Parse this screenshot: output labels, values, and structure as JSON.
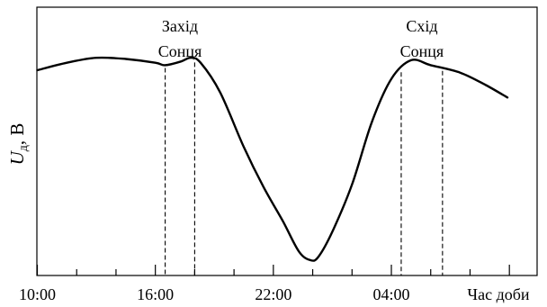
{
  "chart_data": {
    "type": "line",
    "ylabel_main": "U",
    "ylabel_sub": "д",
    "ylabel_unit": ", В",
    "xlabel": "Час доби",
    "x_ticks": [
      {
        "value": 0,
        "label": "10:00"
      },
      {
        "value": 6,
        "label": "16:00"
      },
      {
        "value": 12,
        "label": "22:00"
      },
      {
        "value": 18,
        "label": "04:00"
      }
    ],
    "xlim": [
      0,
      23.9
    ],
    "ylim": [
      0,
      1
    ],
    "series": [
      {
        "points": [
          [
            0.0,
            0.79
          ],
          [
            1.5,
            0.82
          ],
          [
            3.0,
            0.84
          ],
          [
            4.5,
            0.835
          ],
          [
            6.0,
            0.82
          ],
          [
            6.5,
            0.81
          ],
          [
            7.3,
            0.825
          ],
          [
            7.8,
            0.84
          ],
          [
            8.3,
            0.82
          ],
          [
            9.3,
            0.7
          ],
          [
            10.5,
            0.48
          ],
          [
            11.5,
            0.32
          ],
          [
            12.5,
            0.18
          ],
          [
            13.3,
            0.06
          ],
          [
            13.9,
            0.025
          ],
          [
            14.3,
            0.04
          ],
          [
            15.0,
            0.14
          ],
          [
            16.0,
            0.33
          ],
          [
            17.0,
            0.58
          ],
          [
            18.0,
            0.755
          ],
          [
            19.0,
            0.83
          ],
          [
            20.0,
            0.81
          ],
          [
            21.5,
            0.78
          ],
          [
            22.8,
            0.73
          ],
          [
            23.9,
            0.68
          ]
        ]
      }
    ],
    "annotations": [
      {
        "text_line1": "Захід",
        "text_line2": "Сонця",
        "x_marks": [
          6.5,
          8.0
        ]
      },
      {
        "text_line1": "Схід",
        "text_line2": "Сонця",
        "x_marks": [
          18.5,
          20.6
        ]
      }
    ]
  }
}
